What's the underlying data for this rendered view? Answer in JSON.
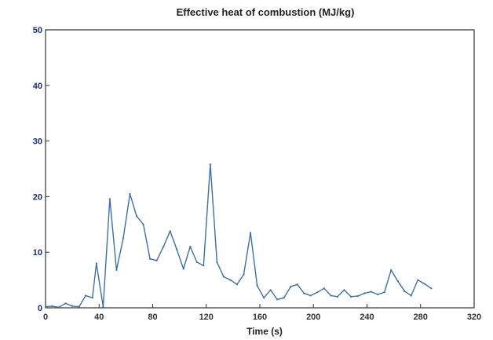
{
  "chart_data": {
    "type": "line",
    "title": "Effective heat of combustion (MJ/kg)",
    "xlabel": "Time (s)",
    "ylabel": "",
    "xlim": [
      0,
      320
    ],
    "ylim": [
      0,
      50
    ],
    "xticks": [
      0,
      40,
      80,
      120,
      160,
      200,
      240,
      280,
      320
    ],
    "xtick_labels": [
      "0",
      "40",
      "80",
      "120",
      "160",
      "200",
      "240",
      "280",
      "320"
    ],
    "yticks": [
      0,
      10,
      20,
      30,
      40,
      50
    ],
    "ytick_labels": [
      "0",
      "10",
      "20",
      "30",
      "40",
      "50"
    ],
    "grid": false,
    "colors": {
      "line": "#3d6fa8",
      "ytick": "#1a2c7a",
      "xtick": "#333333"
    },
    "series": [
      {
        "x": [
          0,
          5,
          10,
          15,
          20,
          25,
          30,
          35,
          38,
          43,
          48,
          53,
          58,
          63,
          68,
          73,
          78,
          83,
          88,
          93,
          98,
          103,
          108,
          113,
          118,
          123,
          128,
          133,
          138,
          143,
          148,
          153,
          158,
          163,
          168,
          173,
          178,
          183,
          188,
          193,
          198,
          203,
          208,
          213,
          218,
          223,
          228,
          233,
          238,
          243,
          248,
          253,
          258,
          263,
          268,
          273,
          278,
          283,
          288
        ],
        "y": [
          0.2,
          0.3,
          0.1,
          0.8,
          0.3,
          0.2,
          2.2,
          1.8,
          8.0,
          0.2,
          19.6,
          6.8,
          12.5,
          20.5,
          16.5,
          15.0,
          8.8,
          8.5,
          11.0,
          13.8,
          10.5,
          7.0,
          11.0,
          8.2,
          7.6,
          25.8,
          8.2,
          5.6,
          5.0,
          4.2,
          6.0,
          13.5,
          4.0,
          1.8,
          3.2,
          1.5,
          1.8,
          3.8,
          4.2,
          2.6,
          2.2,
          2.8,
          3.5,
          2.2,
          2.0,
          3.2,
          2.0,
          2.1,
          2.6,
          2.9,
          2.4,
          2.8,
          6.8,
          4.8,
          3.0,
          2.2,
          5.0,
          4.3,
          3.5
        ]
      }
    ]
  }
}
